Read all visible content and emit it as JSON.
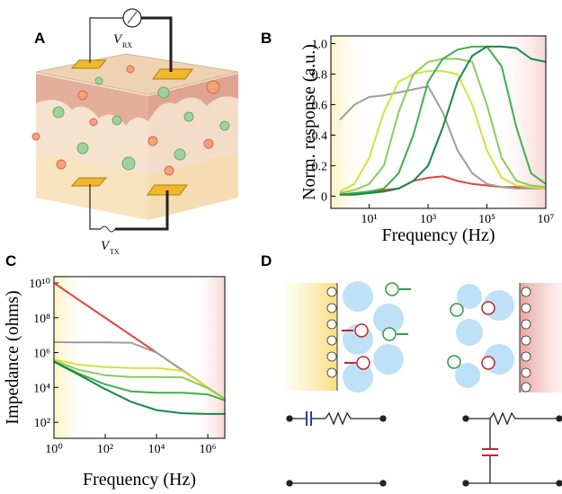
{
  "panels": {
    "a": "A",
    "b": "B",
    "c": "C",
    "d": "D"
  },
  "diagram": {
    "v_rx": "V",
    "v_rx_sub": "RX",
    "v_tx": "V",
    "v_tx_sub": "TX"
  },
  "chart_data": [
    {
      "type": "line",
      "xlabel": "Frequency (Hz)",
      "ylabel": "Norm. response (a.u.)",
      "log_x": true,
      "x": [
        1,
        3.16,
        10,
        31.6,
        100,
        316,
        1000,
        3160,
        10000,
        31600,
        100000,
        316000,
        1000000,
        3160000,
        10000000
      ],
      "xlim": [
        0.5,
        10000000
      ],
      "xticks": [
        {
          "value": 10,
          "label": "10¹"
        },
        {
          "value": 1000,
          "label": "10³"
        },
        {
          "value": 100000,
          "label": "10⁵"
        },
        {
          "value": 10000000,
          "label": "10⁷"
        }
      ],
      "ylim": [
        -0.08,
        1.05
      ],
      "yticks": [
        0,
        0.2,
        0.4,
        0.6,
        0.8,
        {
          "value": 1,
          "label": "1.0"
        }
      ],
      "series": [
        {
          "color": "#e0433a",
          "values": [
            0.01,
            0.02,
            0.03,
            0.04,
            0.05,
            0.1,
            0.12,
            0.13,
            0.1,
            0.08,
            0.07,
            0.06,
            0.06,
            0.06,
            0.05
          ]
        },
        {
          "color": "#9e9e9e",
          "values": [
            0.5,
            0.6,
            0.65,
            0.66,
            0.68,
            0.7,
            0.72,
            0.55,
            0.3,
            0.15,
            0.08,
            0.06,
            0.05,
            0.05,
            0.05
          ]
        },
        {
          "color": "#d6e03c",
          "values": [
            0.03,
            0.08,
            0.25,
            0.55,
            0.75,
            0.8,
            0.82,
            0.82,
            0.8,
            0.6,
            0.3,
            0.12,
            0.07,
            0.06,
            0.05
          ]
        },
        {
          "color": "#8ccc5a",
          "values": [
            0.02,
            0.04,
            0.08,
            0.2,
            0.55,
            0.8,
            0.88,
            0.9,
            0.9,
            0.88,
            0.6,
            0.25,
            0.1,
            0.07,
            0.06
          ]
        },
        {
          "color": "#3db04a",
          "values": [
            0.01,
            0.02,
            0.03,
            0.05,
            0.15,
            0.4,
            0.75,
            0.9,
            0.96,
            0.98,
            0.98,
            0.85,
            0.45,
            0.15,
            0.08
          ]
        },
        {
          "color": "#138a45",
          "values": [
            0.01,
            0.01,
            0.02,
            0.03,
            0.05,
            0.1,
            0.2,
            0.45,
            0.75,
            0.92,
            0.98,
            0.98,
            0.97,
            0.9,
            0.88
          ]
        }
      ]
    },
    {
      "type": "line",
      "xlabel": "Frequency (Hz)",
      "ylabel": "Impedance (ohms)",
      "log_x": true,
      "log_y": true,
      "x": [
        1,
        10,
        100,
        1000,
        10000,
        100000,
        1000000,
        4600000
      ],
      "xlim": [
        1,
        4600000
      ],
      "xticks": [
        {
          "value": 1,
          "label": "10⁰"
        },
        {
          "value": 100,
          "label": "10²"
        },
        {
          "value": 10000,
          "label": "10⁴"
        },
        {
          "value": 1000000,
          "label": "10⁶"
        }
      ],
      "ylim": [
        12,
        23000000000
      ],
      "yticks": [
        {
          "value": 100,
          "label": "10²"
        },
        {
          "value": 10000,
          "label": "10⁴"
        },
        {
          "value": 1000000,
          "label": "10⁶"
        },
        {
          "value": 100000000,
          "label": "10⁸"
        },
        {
          "value": 10000000000,
          "label": "10¹⁰"
        }
      ],
      "series": [
        {
          "color": "#e0433a",
          "values": [
            10000000000,
            1000000000,
            100000000,
            10000000,
            1000000,
            100000,
            10000,
            2200
          ]
        },
        {
          "color": "#9e9e9e",
          "values": [
            4000000,
            3800000,
            3800000,
            3700000,
            1000000,
            100000,
            10000,
            2200
          ]
        },
        {
          "color": "#d6e03c",
          "values": [
            400000,
            200000,
            150000,
            130000,
            130000,
            90000,
            10000,
            2200
          ]
        },
        {
          "color": "#8ccc5a",
          "values": [
            350000,
            100000,
            50000,
            40000,
            40000,
            38000,
            9000,
            2200
          ]
        },
        {
          "color": "#3db04a",
          "values": [
            300000,
            60000,
            15000,
            6000,
            5000,
            5000,
            4000,
            1800
          ]
        },
        {
          "color": "#138a45",
          "values": [
            300000,
            50000,
            8000,
            1500,
            500,
            330,
            300,
            300
          ]
        }
      ]
    }
  ]
}
